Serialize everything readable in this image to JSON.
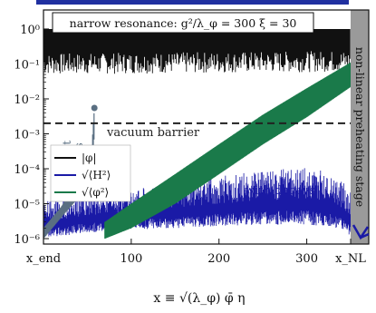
{
  "chart_data": {
    "type": "line",
    "title": "",
    "xlabel": "x ≡ √(λ_φ) φ̄ η",
    "ylabel": "",
    "xlim": [
      0,
      350
    ],
    "ylim": [
      7e-07,
      3.5
    ],
    "yscale": "log",
    "grid": false,
    "x_tick_labels": [
      {
        "x": 0,
        "label": "x_end"
      },
      {
        "x": 100,
        "label": "100"
      },
      {
        "x": 200,
        "label": "200"
      },
      {
        "x": 300,
        "label": "300"
      },
      {
        "x": 350,
        "label": "x_NL"
      }
    ],
    "y_tick_labels": [
      {
        "y": 1.0,
        "label": "10^0"
      },
      {
        "y": 0.1,
        "label": "10^-1"
      },
      {
        "y": 0.01,
        "label": "10^-2"
      },
      {
        "y": 0.001,
        "label": "10^-3"
      },
      {
        "y": 0.0001,
        "label": "10^-4"
      },
      {
        "y": 1e-05,
        "label": "10^-5"
      },
      {
        "y": 1e-06,
        "label": "10^-6"
      }
    ],
    "legend": {
      "placement": "center-left",
      "entries": [
        {
          "label": "|φ|",
          "color": "#111111"
        },
        {
          "label": "√⟨H²⟩",
          "color": "#1a1aa6"
        },
        {
          "label": "√⟨φ²⟩",
          "color": "#1a7a4a"
        }
      ]
    },
    "series": [
      {
        "label": "|φ|",
        "color": "#111111",
        "style": "rapid oscillation band",
        "x": [
          0,
          350
        ],
        "upper": [
          1.0,
          1.0
        ],
        "lower": [
          0.05,
          0.06
        ]
      },
      {
        "label": "√⟨H²⟩",
        "color": "#1a1aa6",
        "style": "noisy band",
        "x": [
          0,
          50,
          100,
          150,
          200,
          250,
          300,
          330,
          350
        ],
        "upper": [
          1.2e-05,
          1.8e-05,
          2.6e-05,
          3.8e-05,
          6e-05,
          9e-05,
          0.00011,
          8e-05,
          2.5e-05
        ],
        "lower": [
          1e-06,
          1.5e-06,
          1.8e-06,
          2e-06,
          2.3e-06,
          2.5e-06,
          2.5e-06,
          2.2e-06,
          1.2e-06
        ]
      },
      {
        "label": "√⟨φ²⟩",
        "color": "#1a7a4a",
        "style": "band",
        "x": [
          70,
          100,
          150,
          200,
          250,
          300,
          350
        ],
        "upper": [
          3e-06,
          1e-05,
          7e-05,
          0.0005,
          0.0035,
          0.02,
          0.11
        ],
        "lower": [
          1e-06,
          2e-06,
          1e-05,
          7e-05,
          0.0005,
          0.003,
          0.022
        ]
      },
      {
        "label": "without decays",
        "color": "#5a6f82",
        "style": "band",
        "x": [
          0,
          20,
          40,
          55,
          58
        ],
        "upper": [
          2e-06,
          8e-06,
          5e-05,
          0.0004,
          0.0055
        ],
        "lower": [
          1e-06,
          4e-06,
          1.5e-05,
          6e-05,
          0.001
        ]
      }
    ],
    "reference_lines": [
      {
        "label": "vacuum barrier",
        "y": 0.002,
        "style": "dashed",
        "color": "#222222"
      }
    ],
    "annotations": {
      "box_title": "narrow resonance: g²/λ_φ = 300   ξ = 30",
      "without_decays": [
        "without",
        "decays"
      ],
      "with_decays": "with decays",
      "region_label": "non-linear preheating stage"
    }
  }
}
